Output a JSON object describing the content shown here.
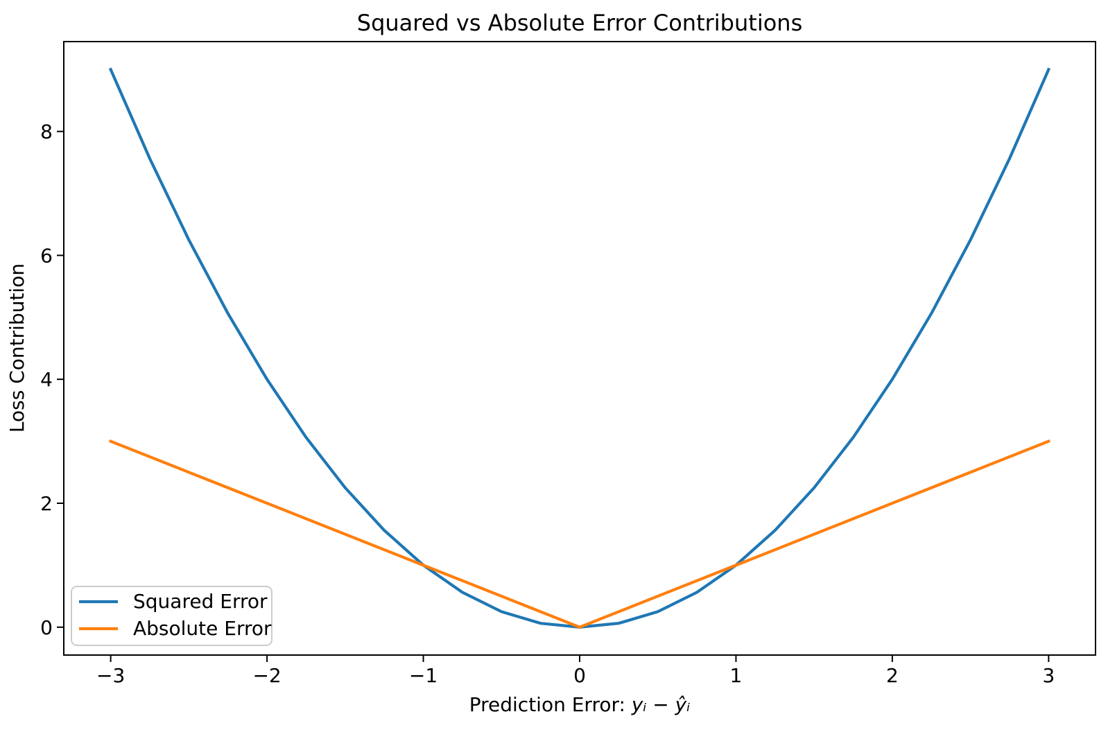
{
  "labels": {
    "xlabel_prefix": "Prediction Error: ",
    "xlabel_math": "yᵢ − ŷᵢ"
  },
  "chart_data": {
    "type": "line",
    "title": "Squared vs Absolute Error Contributions",
    "xlabel": "Prediction Error: yᵢ − ŷᵢ",
    "ylabel": "Loss Contribution",
    "x": [
      -3,
      -2.75,
      -2.5,
      -2.25,
      -2,
      -1.75,
      -1.5,
      -1.25,
      -1,
      -0.75,
      -0.5,
      -0.25,
      0,
      0.25,
      0.5,
      0.75,
      1,
      1.25,
      1.5,
      1.75,
      2,
      2.25,
      2.5,
      2.75,
      3
    ],
    "series": [
      {
        "name": "Squared Error",
        "color": "#1f77b4",
        "values": [
          9,
          7.5625,
          6.25,
          5.0625,
          4,
          3.0625,
          2.25,
          1.5625,
          1,
          0.5625,
          0.25,
          0.0625,
          0,
          0.0625,
          0.25,
          0.5625,
          1,
          1.5625,
          2.25,
          3.0625,
          4,
          5.0625,
          6.25,
          7.5625,
          9
        ]
      },
      {
        "name": "Absolute Error",
        "color": "#ff7f0e",
        "values": [
          3,
          2.75,
          2.5,
          2.25,
          2,
          1.75,
          1.5,
          1.25,
          1,
          0.75,
          0.5,
          0.25,
          0,
          0.25,
          0.5,
          0.75,
          1,
          1.25,
          1.5,
          1.75,
          2,
          2.25,
          2.5,
          2.75,
          3
        ]
      }
    ],
    "xlim": [
      -3.3,
      3.3
    ],
    "ylim": [
      -0.45,
      9.45
    ],
    "xticks": [
      -3,
      -2,
      -1,
      0,
      1,
      2,
      3
    ],
    "xtick_labels": [
      "−3",
      "−2",
      "−1",
      "0",
      "1",
      "2",
      "3"
    ],
    "yticks": [
      0,
      2,
      4,
      6,
      8
    ],
    "ytick_labels": [
      "0",
      "2",
      "4",
      "6",
      "8"
    ],
    "grid": false,
    "legend_position": "lower left",
    "background_color": "#ffffff",
    "spine_color": "#000000"
  }
}
